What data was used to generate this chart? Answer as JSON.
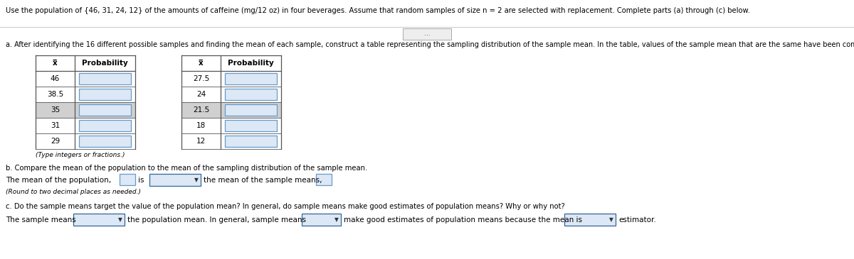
{
  "title_text": "Use the population of {46, 31, 24, 12} of the amounts of caffeine (mg/12 oz) in four beverages. Assume that random samples of size n = 2 are selected with replacement. Complete parts (a) through (c) below.",
  "part_a_label": "a. After identifying the 16 different possible samples and finding the mean of each sample, construct a table representing the sampling distribution of the sample mean. In the table, values of the sample mean that are the same have been combined.",
  "col1_x": [
    "46",
    "38.5",
    "35",
    "31",
    "29"
  ],
  "col2_x": [
    "27.5",
    "24",
    "21.5",
    "18",
    "12"
  ],
  "col_header_x": "x̅",
  "col_header_prob": "Probability",
  "type_note": "(Type integers or fractions.)",
  "part_b_label": "b. Compare the mean of the population to the mean of the sampling distribution of the sample mean.",
  "part_b_text1": "The mean of the population,",
  "part_b_text2": "is",
  "part_b_text3": "the mean of the sample means,",
  "part_b_note": "(Round to two decimal places as needed.)",
  "part_c_label": "c. Do the sample means target the value of the population mean? In general, do sample means make good estimates of population means? Why or why not?",
  "part_c_text1": "The sample means",
  "part_c_text2": "the population mean. In general, sample means",
  "part_c_text3": "make good estimates of population means because the mean is",
  "part_c_text4": "estimator.",
  "bg_color": "#ffffff",
  "text_color": "#000000",
  "separator_color": "#cccccc",
  "table_line_color": "#555555",
  "input_box_color": "#dce8f5",
  "input_box_border": "#6699cc",
  "dropdown_box_color": "#dce8f5",
  "dropdown_box_border": "#336699",
  "gray_row_color": "#bbbbbb"
}
